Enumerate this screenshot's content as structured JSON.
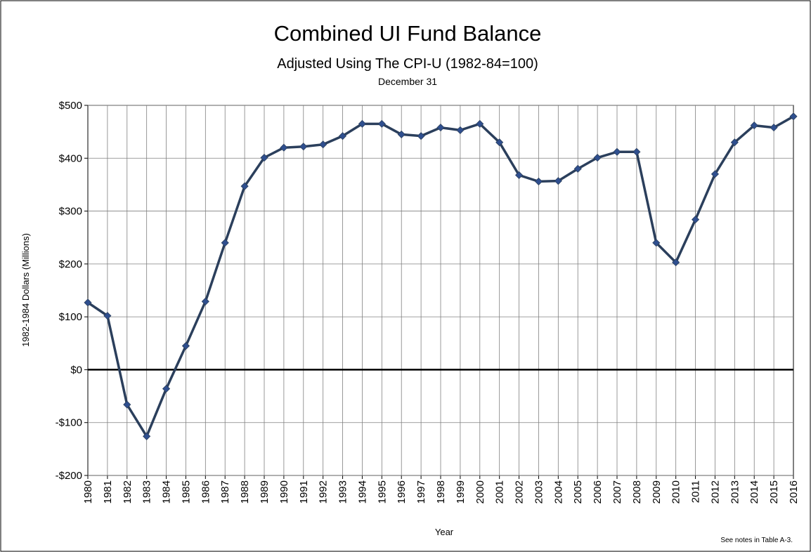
{
  "chart_data": {
    "type": "line",
    "title": "Combined UI Fund Balance",
    "subtitle": "Adjusted Using The CPI-U (1982-84=100)",
    "date_note": "December 31",
    "x_label": "Year",
    "y_label": "1982-1984 Dollars (Millions)",
    "footnote": "See notes  in Table A-3.",
    "categories": [
      "1980",
      "1981",
      "1982",
      "1983",
      "1984",
      "1985",
      "1986",
      "1987",
      "1988",
      "1989",
      "1990",
      "1991",
      "1992",
      "1993",
      "1994",
      "1995",
      "1996",
      "1997",
      "1998",
      "1999",
      "2000",
      "2001",
      "2002",
      "2003",
      "2004",
      "2005",
      "2006",
      "2007",
      "2008",
      "2009",
      "2010",
      "2011",
      "2012",
      "2013",
      "2014",
      "2015",
      "2016"
    ],
    "values": [
      127,
      102,
      -66,
      -126,
      -36,
      45,
      129,
      240,
      347,
      401,
      420,
      422,
      426,
      442,
      465,
      465,
      445,
      442,
      458,
      453,
      465,
      430,
      368,
      356,
      357,
      380,
      401,
      412,
      412,
      240,
      203,
      284,
      370,
      430,
      462,
      458,
      479
    ],
    "color": "#2b3f5c",
    "marker_color": "#2f4f8f",
    "ylim": [
      -200,
      500
    ],
    "yticks": [
      {
        "value": -200,
        "label": "-$200"
      },
      {
        "value": -100,
        "label": "-$100"
      },
      {
        "value": 0,
        "label": "$0"
      },
      {
        "value": 100,
        "label": "$100"
      },
      {
        "value": 200,
        "label": "$200"
      },
      {
        "value": 300,
        "label": "$300"
      },
      {
        "value": 400,
        "label": "$400"
      },
      {
        "value": 500,
        "label": "$500"
      }
    ],
    "grid": true
  }
}
